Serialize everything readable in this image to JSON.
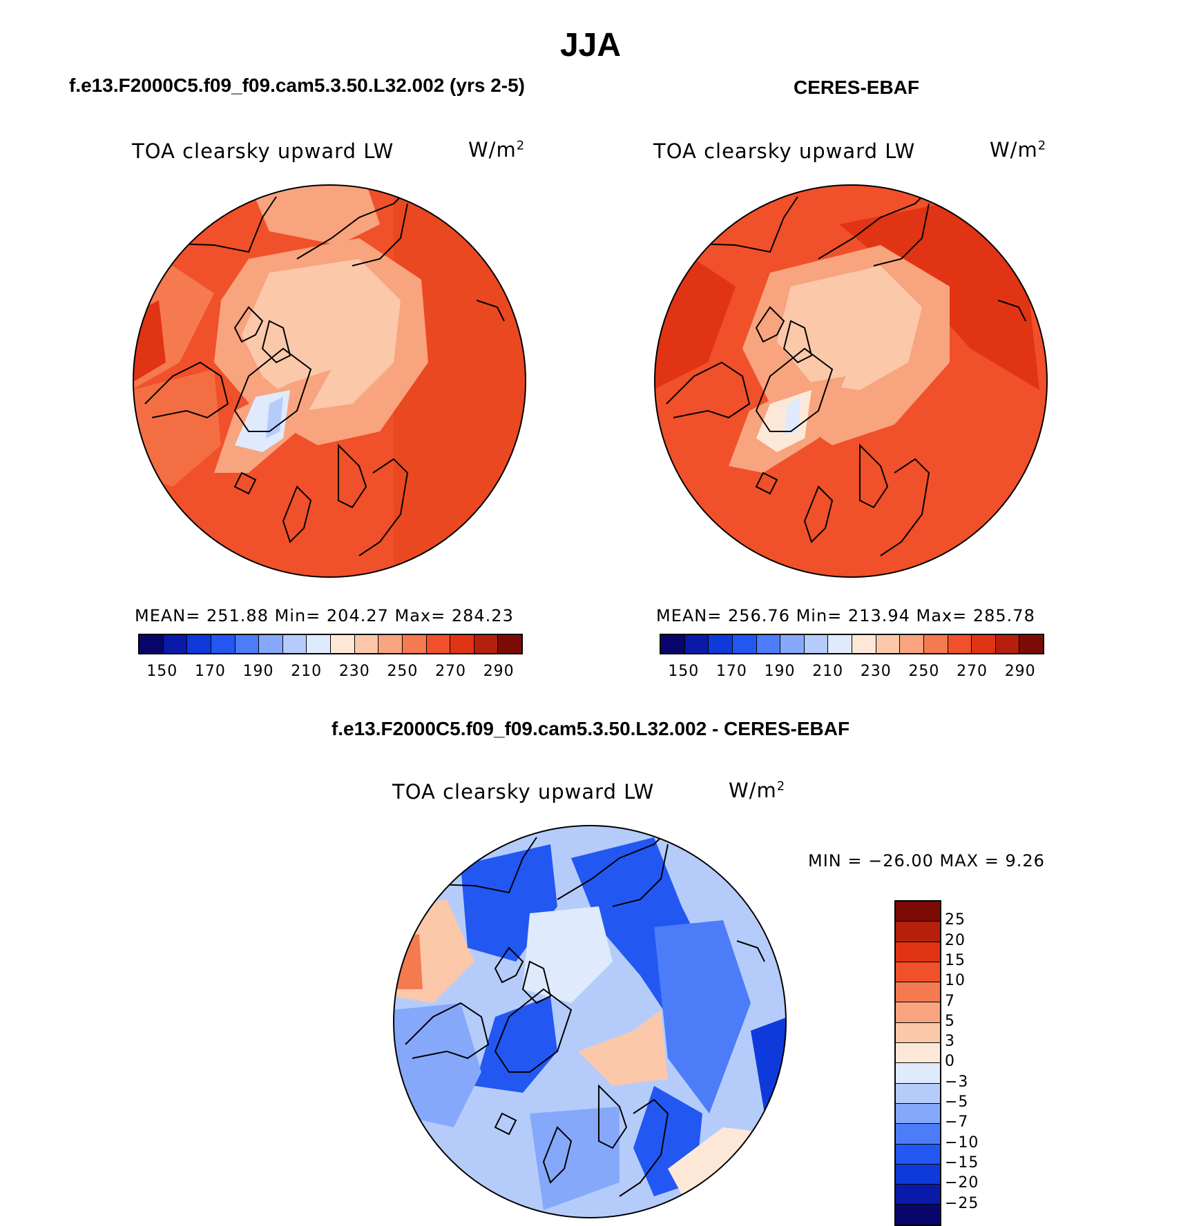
{
  "header": {
    "title": "JJA",
    "left_panel_title": "f.e13.F2000C5.f09_f09.cam5.3.50.L32.002 (yrs 2-5)",
    "right_panel_title": "CERES-EBAF",
    "diff_panel_title": "f.e13.F2000C5.f09_f09.cam5.3.50.L32.002 - CERES-EBAF"
  },
  "panels": {
    "model": {
      "variable": "TOA clearsky upward LW",
      "unit_base": "W/m",
      "unit_exp": "2",
      "stats": "MEAN= 251.88   Min= 204.27   Max= 284.23"
    },
    "obs": {
      "variable": "TOA clearsky upward LW",
      "unit_base": "W/m",
      "unit_exp": "2",
      "stats": "MEAN= 256.76   Min= 213.94   Max= 285.78"
    },
    "diff": {
      "variable": "TOA clearsky upward LW",
      "unit_base": "W/m",
      "unit_exp": "2",
      "stats": "MIN = −26.00 MAX =    9.26"
    }
  },
  "colorbar_abs": {
    "ticks": [
      "150",
      "170",
      "190",
      "210",
      "230",
      "250",
      "270",
      "290"
    ],
    "colors": [
      "#08066b",
      "#0a1aa8",
      "#0e3adc",
      "#2257f2",
      "#4c7cf7",
      "#86a8fa",
      "#b5ccfb",
      "#dfeafd",
      "#fde8d8",
      "#fbc8aa",
      "#f8a47e",
      "#f57a50",
      "#f0502a",
      "#e13414",
      "#b5200c",
      "#7c0b05"
    ]
  },
  "colorbar_diff": {
    "ticks": [
      "25",
      "20",
      "15",
      "10",
      "7",
      "5",
      "3",
      "0",
      "−3",
      "−5",
      "−7",
      "−10",
      "−15",
      "−20",
      "−25"
    ],
    "colors": [
      "#7c0b05",
      "#b5200c",
      "#e13414",
      "#f0502a",
      "#f57a50",
      "#f8a47e",
      "#fbc8aa",
      "#fde8d8",
      "#dfeafd",
      "#b5ccfb",
      "#86a8fa",
      "#4c7cf7",
      "#2257f2",
      "#0e3adc",
      "#0a1aa8",
      "#08066b"
    ]
  }
}
